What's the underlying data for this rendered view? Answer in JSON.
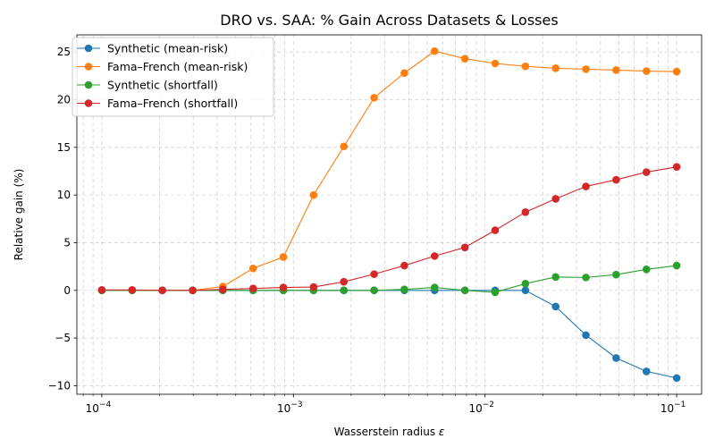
{
  "chart_data": {
    "type": "line",
    "title": "DRO vs. SAA: % Gain Across Datasets & Losses",
    "xlabel_prefix": "Wasserstein radius ",
    "xlabel_symbol": "ε",
    "ylabel": "Relative gain (%)",
    "xscale": "log",
    "xlim": [
      7.41e-05,
      0.1349
    ],
    "ylim": [
      -10.9,
      26.8
    ],
    "grid": true,
    "legend_position": "top-left",
    "x": [
      0.0001,
      0.000144,
      0.000207,
      0.000298,
      0.000428,
      0.000616,
      0.000886,
      0.001274,
      0.001833,
      0.002637,
      0.003793,
      0.005456,
      0.007848,
      0.011288,
      0.016238,
      0.023357,
      0.033598,
      0.048329,
      0.069519,
      0.1
    ],
    "x_ticks": [
      {
        "value": 0.0001,
        "base": "10",
        "exp": "−4"
      },
      {
        "value": 0.001,
        "base": "10",
        "exp": "−3"
      },
      {
        "value": 0.01,
        "base": "10",
        "exp": "−2"
      },
      {
        "value": 0.1,
        "base": "10",
        "exp": "−1"
      }
    ],
    "y_ticks": [
      {
        "value": -10,
        "label": "−10"
      },
      {
        "value": -5,
        "label": "−5"
      },
      {
        "value": 0,
        "label": "0"
      },
      {
        "value": 5,
        "label": "5"
      },
      {
        "value": 10,
        "label": "10"
      },
      {
        "value": 15,
        "label": "15"
      },
      {
        "value": 20,
        "label": "20"
      },
      {
        "value": 25,
        "label": "25"
      }
    ],
    "series": [
      {
        "name": "Synthetic (mean-risk)",
        "color": "#1f77b4",
        "values": [
          0,
          0,
          0,
          0,
          0,
          0,
          0,
          0,
          0,
          0,
          0,
          0,
          0,
          0,
          0,
          -1.7,
          -4.7,
          -7.1,
          -8.5,
          -9.2
        ]
      },
      {
        "name": "Fama–French (mean-risk)",
        "color": "#ff7f0e",
        "values": [
          0,
          0,
          0,
          0,
          0.4,
          2.3,
          3.5,
          10.0,
          15.1,
          20.2,
          22.8,
          25.1,
          24.3,
          23.8,
          23.5,
          23.3,
          23.2,
          23.1,
          23.0,
          22.95
        ]
      },
      {
        "name": "Synthetic (shortfall)",
        "color": "#2ca02c",
        "values": [
          0,
          0,
          0,
          0,
          0,
          0,
          0,
          0,
          0,
          0,
          0.1,
          0.3,
          0,
          -0.2,
          0.7,
          1.4,
          1.35,
          1.65,
          2.2,
          2.6
        ]
      },
      {
        "name": "Fama–French (shortfall)",
        "color": "#d62728",
        "values": [
          0.05,
          0.05,
          0,
          0,
          0.1,
          0.2,
          0.3,
          0.35,
          0.9,
          1.7,
          2.6,
          3.6,
          4.5,
          6.3,
          8.2,
          9.6,
          10.9,
          11.6,
          12.4,
          12.95
        ]
      }
    ]
  }
}
